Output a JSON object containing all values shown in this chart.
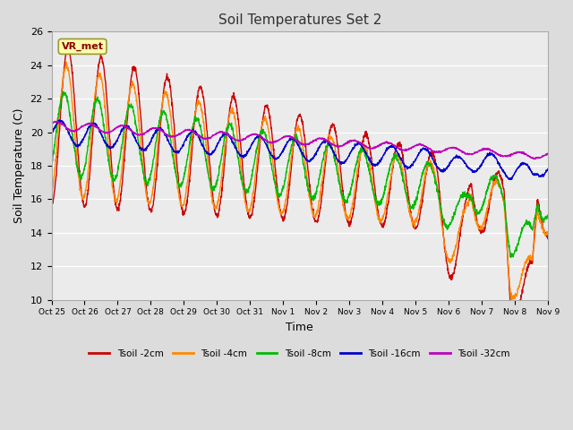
{
  "title": "Soil Temperatures Set 2",
  "xlabel": "Time",
  "ylabel": "Soil Temperature (C)",
  "ylim": [
    10,
    26
  ],
  "yticks": [
    10,
    12,
    14,
    16,
    18,
    20,
    22,
    24,
    26
  ],
  "bg_color": "#dcdcdc",
  "plot_bg_color": "#ebebeb",
  "series": [
    {
      "label": "Tsoil -2cm",
      "color": "#cc0000"
    },
    {
      "label": "Tsoil -4cm",
      "color": "#ff8800"
    },
    {
      "label": "Tsoil -8cm",
      "color": "#00bb00"
    },
    {
      "label": "Tsoil -16cm",
      "color": "#0000cc"
    },
    {
      "label": "Tsoil -32cm",
      "color": "#bb00bb"
    }
  ],
  "annotation_text": "VR_met",
  "x_tick_labels": [
    "Oct 25",
    "Oct 26",
    "Oct 27",
    "Oct 28",
    "Oct 29",
    "Oct 30",
    "Oct 31",
    "Nov 1",
    "Nov 2",
    "Nov 3",
    "Nov 4",
    "Nov 5",
    "Nov 6",
    "Nov 7",
    "Nov 8",
    "Nov 9"
  ]
}
